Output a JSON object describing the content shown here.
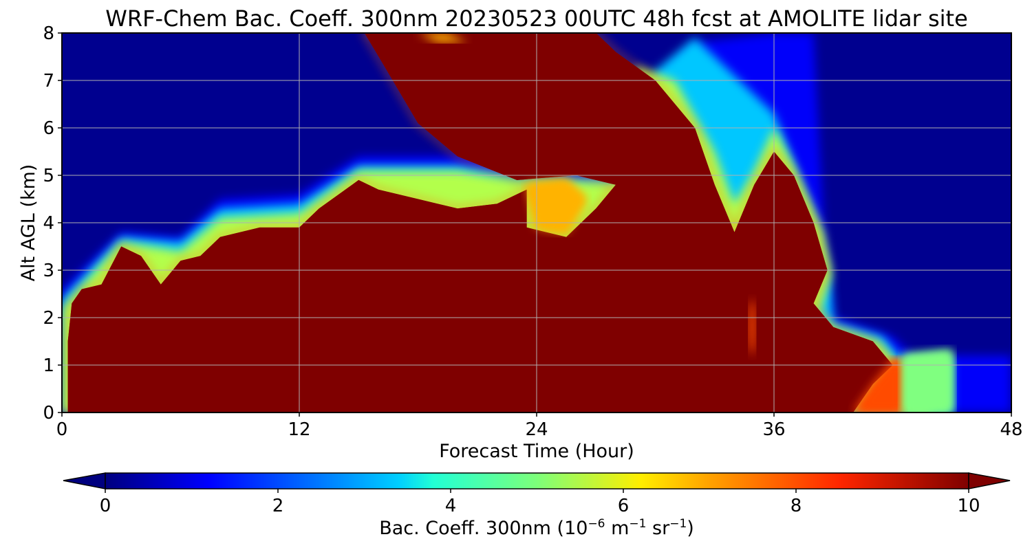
{
  "chart_data": {
    "type": "heatmap",
    "title": "WRF-Chem Bac. Coeff. 300nm  20230523 00UTC 48h fcst at AMOLITE lidar site",
    "xlabel": "Forecast Time (Hour)",
    "ylabel": "Alt AGL (km)",
    "xlim": [
      0,
      48
    ],
    "ylim": [
      0,
      8
    ],
    "x_ticks": [
      "0",
      "12",
      "24",
      "36",
      "48"
    ],
    "y_ticks": [
      "0",
      "1",
      "2",
      "3",
      "4",
      "5",
      "6",
      "7",
      "8"
    ],
    "grid": true,
    "colormap": "jet",
    "colorbar": {
      "orientation": "horizontal",
      "placement": "bottom",
      "label_prefix": "Bac. Coeff. 300nm  (10",
      "label_exp1": "−6",
      "label_mid": " m",
      "label_exp2": "−1",
      "label_mid2": " sr",
      "label_exp3": "−1",
      "label_suffix": ")",
      "range": [
        0,
        10
      ],
      "ticks": [
        "0",
        "2",
        "4",
        "6",
        "8",
        "10"
      ],
      "extend": "both"
    },
    "contour_regions": [
      {
        "level": 10,
        "description_value": "maximum",
        "polygon": [
          [
            0,
            0
          ],
          [
            0.3,
            0
          ],
          [
            0.3,
            1.5
          ],
          [
            0.5,
            2.3
          ],
          [
            1,
            2.6
          ],
          [
            2,
            2.7
          ],
          [
            3,
            3.5
          ],
          [
            4,
            3.3
          ],
          [
            5,
            2.7
          ],
          [
            6,
            3.2
          ],
          [
            7,
            3.3
          ],
          [
            8,
            3.7
          ],
          [
            10,
            3.9
          ],
          [
            12,
            3.9
          ],
          [
            13,
            4.3
          ],
          [
            15,
            4.9
          ],
          [
            16,
            4.7
          ],
          [
            18,
            4.5
          ],
          [
            20,
            4.3
          ],
          [
            22,
            4.4
          ],
          [
            23.5,
            4.7
          ],
          [
            23.5,
            3.9
          ],
          [
            25.5,
            3.7
          ],
          [
            27,
            4.3
          ],
          [
            28,
            4.8
          ],
          [
            26,
            5.0
          ],
          [
            23,
            4.9
          ],
          [
            20,
            5.4
          ],
          [
            18,
            6.1
          ],
          [
            16.3,
            7.3
          ],
          [
            15.3,
            8
          ],
          [
            27,
            8
          ],
          [
            28,
            7.6
          ],
          [
            30,
            7.0
          ],
          [
            32,
            6.0
          ],
          [
            33,
            4.8
          ],
          [
            34,
            3.8
          ],
          [
            35,
            4.8
          ],
          [
            36,
            5.5
          ],
          [
            37,
            5.0
          ],
          [
            38,
            4.0
          ],
          [
            38.7,
            3.0
          ],
          [
            38,
            2.3
          ],
          [
            39,
            1.8
          ],
          [
            41,
            1.5
          ],
          [
            42,
            1.0
          ],
          [
            41,
            0.6
          ],
          [
            40,
            0
          ],
          [
            0,
            0
          ]
        ]
      },
      {
        "level": 7,
        "description_value": "upper plume patch",
        "polygon": [
          [
            18,
            8
          ],
          [
            19.5,
            8
          ],
          [
            20.5,
            7.8
          ],
          [
            19,
            7.8
          ]
        ]
      },
      {
        "level": 7,
        "description_value": "mid-level pocket",
        "polygon": [
          [
            23.5,
            4.8
          ],
          [
            25.5,
            4.9
          ],
          [
            26.5,
            4.5
          ],
          [
            25.5,
            3.8
          ],
          [
            24,
            3.9
          ]
        ]
      },
      {
        "level": 8,
        "description_value": "low-level surface layer",
        "polygon": [
          [
            40,
            0
          ],
          [
            42.5,
            0
          ],
          [
            42.5,
            1.1
          ],
          [
            42,
            1.1
          ],
          [
            41,
            0.6
          ]
        ]
      },
      {
        "level": 5,
        "description_value": "low-level tail",
        "polygon": [
          [
            42.5,
            0
          ],
          [
            45,
            0
          ],
          [
            45,
            1.3
          ],
          [
            42.5,
            1.2
          ]
        ]
      }
    ]
  }
}
